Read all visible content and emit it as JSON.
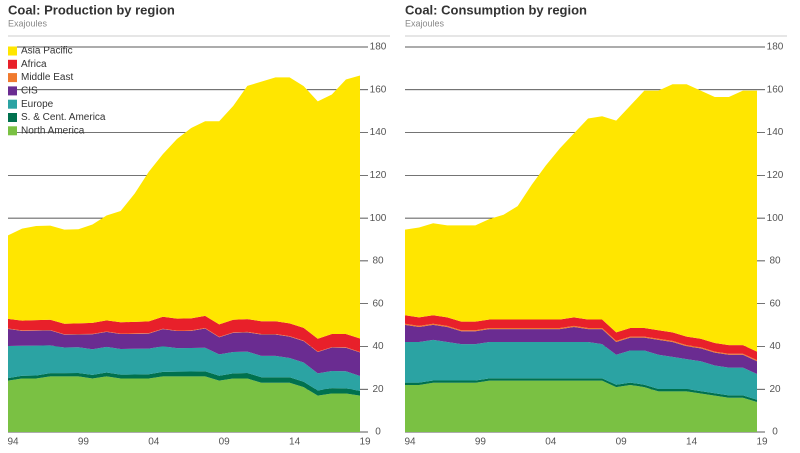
{
  "chart_data": [
    {
      "type": "stacked_area",
      "title": "Coal: Production by region",
      "subtitle": "Exajoules",
      "categories": [
        "94",
        null,
        null,
        null,
        null,
        "99",
        null,
        null,
        null,
        null,
        "04",
        null,
        null,
        null,
        null,
        "09",
        null,
        null,
        null,
        null,
        "14",
        null,
        null,
        null,
        null,
        "19"
      ],
      "ylim": [
        0,
        180
      ],
      "yticks": [
        0,
        20,
        40,
        60,
        80,
        100,
        120,
        140,
        160,
        180
      ],
      "grid": true,
      "legend": "top-left",
      "series": [
        {
          "name": "North America",
          "color": "#7ac143",
          "values": [
            24,
            25,
            25,
            26,
            26,
            26,
            25,
            26,
            25,
            25,
            25,
            26,
            26,
            26,
            26,
            24,
            25,
            25,
            23,
            23,
            23,
            21,
            17,
            18,
            18,
            17
          ]
        },
        {
          "name": "S. & Cent. America",
          "color": "#00714e",
          "values": [
            1.2,
            1.3,
            1.4,
            1.5,
            1.5,
            1.6,
            1.7,
            1.8,
            1.8,
            1.9,
            2,
            2.1,
            2.2,
            2.3,
            2.4,
            2.3,
            2.4,
            2.6,
            2.6,
            2.6,
            2.6,
            2.5,
            2.4,
            2.5,
            2.4,
            2.2
          ]
        },
        {
          "name": "Europe",
          "color": "#2ba3a3",
          "values": [
            15,
            14,
            14,
            13,
            12,
            12,
            12,
            12,
            12,
            12,
            12,
            12,
            11,
            11,
            11,
            10,
            10,
            10,
            10,
            10,
            9,
            9,
            8,
            8,
            8,
            7
          ]
        },
        {
          "name": "CIS",
          "color": "#6a2c91",
          "values": [
            8,
            7,
            7,
            7,
            6,
            6,
            7,
            7,
            7,
            7,
            7,
            8,
            8,
            8,
            9,
            8,
            9,
            9,
            10,
            10,
            10,
            10,
            10,
            11,
            11,
            11
          ]
        },
        {
          "name": "Middle East",
          "color": "#f07a2e",
          "values": [
            0.2,
            0.2,
            0.2,
            0.2,
            0.2,
            0.2,
            0.2,
            0.2,
            0.2,
            0.2,
            0.2,
            0.2,
            0.2,
            0.2,
            0.2,
            0.2,
            0.2,
            0.2,
            0.2,
            0.2,
            0.2,
            0.2,
            0.2,
            0.2,
            0.2,
            0.2
          ]
        },
        {
          "name": "Africa",
          "color": "#e8202a",
          "values": [
            4.5,
            4.6,
            4.7,
            4.8,
            4.9,
            5,
            5.1,
            5.2,
            5.3,
            5.4,
            5.5,
            5.6,
            5.6,
            5.6,
            5.7,
            5.8,
            5.9,
            6,
            6,
            6,
            6,
            6,
            6,
            6.1,
            6.2,
            6.3
          ]
        },
        {
          "name": "Asia Pacific",
          "color": "#ffe600",
          "values": [
            39,
            43,
            44,
            44,
            44,
            44,
            46,
            49,
            52,
            60,
            70,
            76,
            84,
            89,
            91,
            95,
            100,
            109,
            112,
            114,
            115,
            113,
            111,
            112,
            119,
            123
          ]
        }
      ]
    },
    {
      "type": "stacked_area",
      "title": "Coal: Consumption by region",
      "subtitle": "Exajoules",
      "categories": [
        "94",
        null,
        null,
        null,
        null,
        "99",
        null,
        null,
        null,
        null,
        "04",
        null,
        null,
        null,
        null,
        "09",
        null,
        null,
        null,
        null,
        "14",
        null,
        null,
        null,
        null,
        "19"
      ],
      "ylim": [
        0,
        180
      ],
      "yticks": [
        0,
        20,
        40,
        60,
        80,
        100,
        120,
        140,
        160,
        180
      ],
      "grid": true,
      "series": [
        {
          "color": "#7ac143",
          "values": [
            22,
            22,
            23,
            23,
            23,
            23,
            24,
            24,
            24,
            24,
            24,
            24,
            24,
            24,
            24,
            21,
            22,
            21,
            19,
            19,
            19,
            18,
            17,
            16,
            16,
            14
          ]
        },
        {
          "color": "#00714e",
          "values": [
            1.1,
            1.1,
            1.1,
            1.1,
            1.1,
            1.1,
            1.1,
            1.1,
            1.1,
            1.1,
            1.1,
            1.1,
            1.1,
            1.1,
            1.1,
            1.1,
            1.1,
            1.1,
            1.1,
            1.1,
            1.1,
            1.1,
            1.1,
            1.1,
            1.1,
            1.1
          ]
        },
        {
          "color": "#2ba3a3",
          "values": [
            19,
            19,
            19,
            18,
            17,
            17,
            17,
            17,
            17,
            17,
            17,
            17,
            17,
            17,
            16,
            14,
            15,
            16,
            16,
            15,
            14,
            14,
            13,
            13,
            13,
            12
          ]
        },
        {
          "color": "#6a2c91",
          "values": [
            8,
            7,
            7,
            7,
            6,
            6,
            6,
            6,
            6,
            6,
            6,
            6,
            7,
            6,
            7,
            6,
            6,
            6,
            7,
            7,
            6,
            6,
            6,
            6,
            6,
            6
          ]
        },
        {
          "color": "#f07a2e",
          "values": [
            0.5,
            0.5,
            0.5,
            0.5,
            0.5,
            0.5,
            0.5,
            0.5,
            0.5,
            0.5,
            0.5,
            0.5,
            0.5,
            0.5,
            0.5,
            0.5,
            0.5,
            0.5,
            0.5,
            0.5,
            0.5,
            0.5,
            0.5,
            0.5,
            0.5,
            0.5
          ]
        },
        {
          "color": "#e8202a",
          "values": [
            4,
            4,
            4,
            4,
            4,
            4,
            4,
            4,
            4,
            4,
            4,
            4,
            4,
            4,
            4,
            4,
            4,
            4,
            4,
            4,
            4,
            4,
            4,
            4,
            4,
            4
          ]
        },
        {
          "color": "#ffe600",
          "values": [
            40,
            42,
            43,
            43,
            45,
            45,
            47,
            49,
            53,
            63,
            72,
            80,
            86,
            94,
            95,
            99,
            104,
            111,
            112,
            116,
            118,
            116,
            115,
            116,
            119,
            122
          ]
        }
      ]
    }
  ]
}
